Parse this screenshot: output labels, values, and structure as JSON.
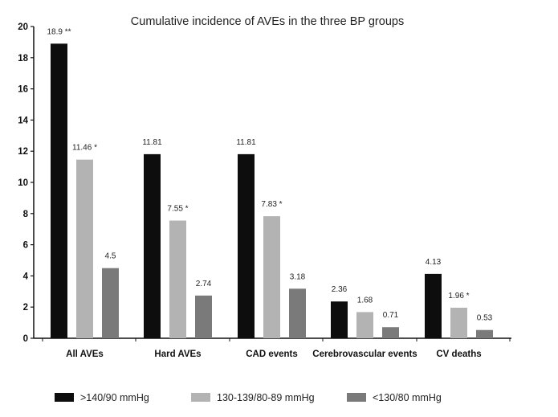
{
  "chart_data": {
    "type": "bar",
    "title": "Cumulative incidence of AVEs in the three BP groups",
    "xlabel": "",
    "ylabel": "",
    "ylim": [
      0,
      20
    ],
    "yticks": [
      "0",
      "2",
      "4",
      "6",
      "8",
      "10",
      "12",
      "14",
      "16",
      "18",
      "20"
    ],
    "categories": [
      "All AVEs",
      "Hard AVEs",
      "CAD events",
      "Cerebrovascular events",
      "CV deaths"
    ],
    "series": [
      {
        "name": ">140/90 mmHg",
        "color": "#0d0d0d",
        "values": [
          18.9,
          11.81,
          11.81,
          2.36,
          4.13
        ],
        "labels": [
          "18.9 **",
          "11.81",
          "11.81",
          "2.36",
          "4.13"
        ]
      },
      {
        "name": "130-139/80-89 mmHg",
        "color": "#b3b3b3",
        "values": [
          11.46,
          7.55,
          7.83,
          1.68,
          1.96
        ],
        "labels": [
          "11.46 *",
          "7.55 *",
          "7.83 *",
          "1.68",
          "1.96 *"
        ]
      },
      {
        "name": "<130/80 mmHg",
        "color": "#7a7a7a",
        "values": [
          4.5,
          2.74,
          3.18,
          0.71,
          0.53
        ],
        "labels": [
          "4.5",
          "2.74",
          "3.18",
          "0.71",
          "0.53"
        ]
      }
    ],
    "grid": false,
    "legend_position": "bottom"
  }
}
